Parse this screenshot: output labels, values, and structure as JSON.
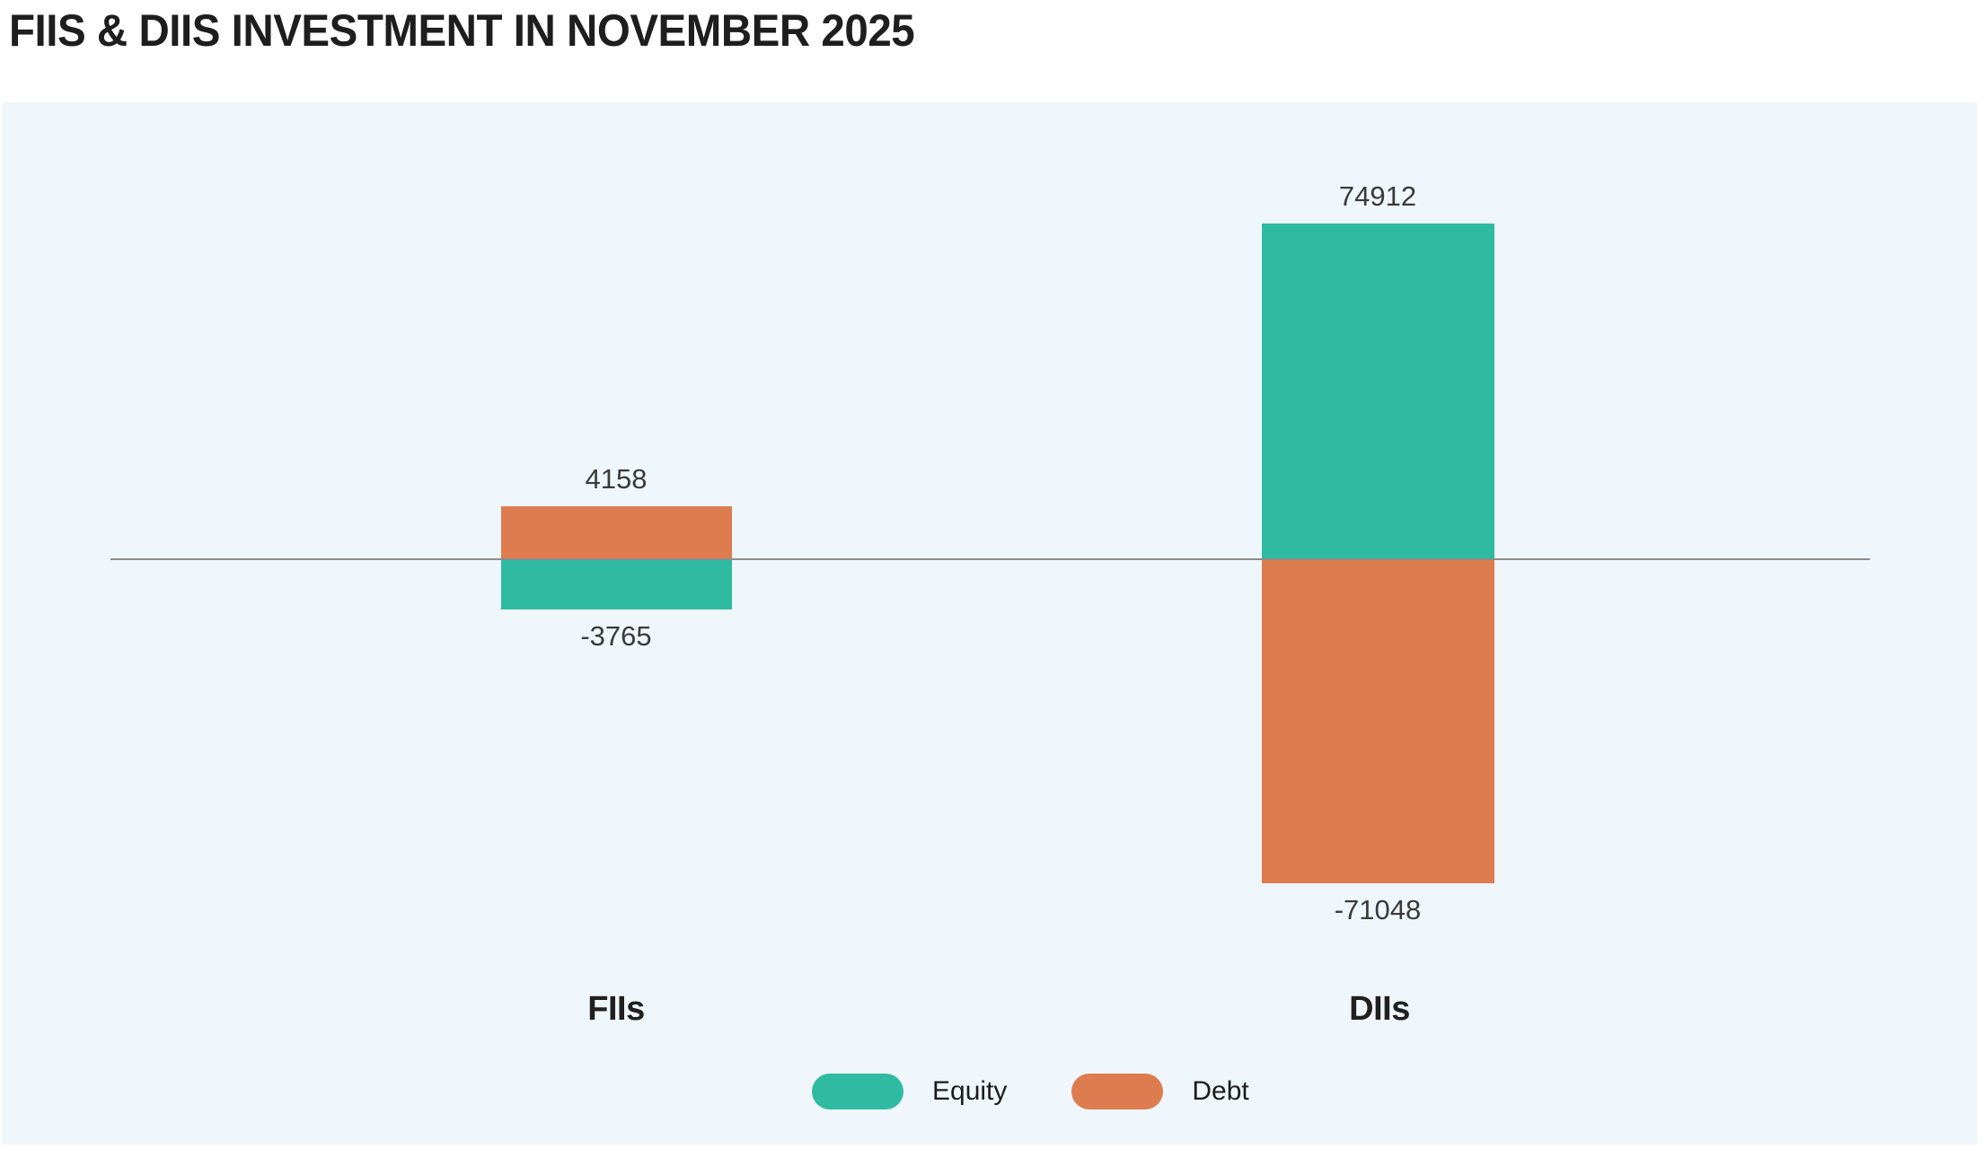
{
  "page_title": "FIIS & DIIS INVESTMENT IN NOVEMBER 2025",
  "chart_data": {
    "type": "bar",
    "title": "FIIS & DIIS INVESTMENT IN NOVEMBER 2025",
    "categories": [
      "FIIs",
      "DIIs"
    ],
    "series": [
      {
        "name": "Equity",
        "color": "#2fbba2",
        "values": [
          -3765,
          74912
        ]
      },
      {
        "name": "Debt",
        "color": "#dd7c4e",
        "values": [
          4158,
          -71048
        ]
      }
    ],
    "groups": [
      {
        "label": "FIIs",
        "bars": [
          {
            "series": "Debt",
            "value": 4158
          },
          {
            "series": "Equity",
            "value": -3765
          }
        ]
      },
      {
        "label": "DIIs",
        "bars": [
          {
            "series": "Equity",
            "value": 74912
          },
          {
            "series": "Debt",
            "value": -71048
          }
        ]
      }
    ],
    "legend": [
      {
        "label": "Equity",
        "color": "#2fbba2"
      },
      {
        "label": "Debt",
        "color": "#dd7c4e"
      }
    ],
    "legend_position": "bottom",
    "grid": false,
    "baseline_value": 0,
    "value_labels_shown": true,
    "colors": {
      "plot_background": "#f0f7fc",
      "axis_line": "#8c8c8c",
      "title_text": "#1e1e1e",
      "value_label_text": "#3a3a3a",
      "category_label_text": "#202020"
    }
  }
}
